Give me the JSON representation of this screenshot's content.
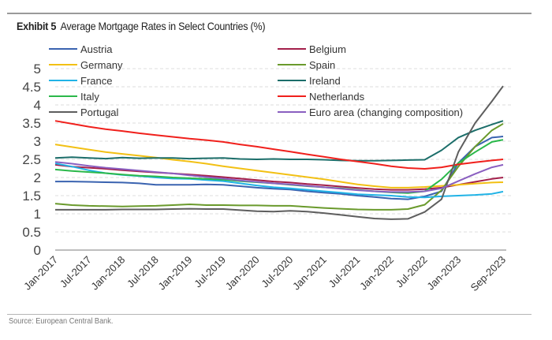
{
  "header": {
    "exhibit": "Exhibit 5",
    "title": "Average Mortgage Rates in Select Countries (%)"
  },
  "footer": {
    "source": "Source: European Central Bank."
  },
  "chart_data": {
    "type": "line",
    "title": "Average Mortgage Rates in Select Countries (%)",
    "xlabel": "",
    "ylabel": "",
    "ylim": [
      0,
      5
    ],
    "yticks": [
      "0",
      "0.5",
      "1",
      "1.5",
      "2",
      "2.5",
      "3",
      "3.5",
      "4",
      "4.5",
      "5"
    ],
    "ytick_values": [
      0,
      0.5,
      1,
      1.5,
      2,
      2.5,
      3,
      3.5,
      4,
      4.5,
      5
    ],
    "xtick_labels": [
      "Jan-2017",
      "Jul-2017",
      "Jan-2018",
      "Jul-2018",
      "Jan-2019",
      "Jul-2019",
      "Jan-2020",
      "Jul-2020",
      "Jan-2021",
      "Jul-2021",
      "Jan-2022",
      "Jul-2022",
      "Jan-2023",
      "Sep-2023"
    ],
    "xtick_months": [
      0,
      6,
      12,
      18,
      24,
      30,
      36,
      42,
      48,
      54,
      60,
      66,
      72,
      80
    ],
    "grid": "horizontal dashed",
    "legend_position": "top, two columns",
    "x_months": [
      0,
      3,
      6,
      9,
      12,
      15,
      18,
      21,
      24,
      27,
      30,
      33,
      36,
      39,
      42,
      45,
      48,
      51,
      54,
      57,
      60,
      63,
      66,
      69,
      72,
      75,
      78,
      80
    ],
    "x_start": "Jan-2017",
    "series": [
      {
        "name": "Austria",
        "color": "#3a63b0",
        "values": [
          1.89,
          1.89,
          1.88,
          1.87,
          1.86,
          1.84,
          1.8,
          1.8,
          1.8,
          1.81,
          1.8,
          1.76,
          1.72,
          1.69,
          1.67,
          1.62,
          1.58,
          1.55,
          1.5,
          1.46,
          1.42,
          1.4,
          1.48,
          1.62,
          2.4,
          2.85,
          3.1,
          3.13
        ]
      },
      {
        "name": "Belgium",
        "color": "#a31f4a",
        "values": [
          2.35,
          2.3,
          2.27,
          2.24,
          2.2,
          2.17,
          2.14,
          2.11,
          2.08,
          2.05,
          2.01,
          1.97,
          1.93,
          1.89,
          1.86,
          1.82,
          1.79,
          1.75,
          1.71,
          1.68,
          1.66,
          1.66,
          1.68,
          1.72,
          1.8,
          1.88,
          1.96,
          2.0
        ]
      },
      {
        "name": "Germany",
        "color": "#f2c014",
        "values": [
          2.91,
          2.84,
          2.77,
          2.7,
          2.65,
          2.6,
          2.55,
          2.49,
          2.44,
          2.38,
          2.31,
          2.25,
          2.19,
          2.13,
          2.07,
          2.01,
          1.95,
          1.88,
          1.81,
          1.76,
          1.72,
          1.72,
          1.74,
          1.77,
          1.8,
          1.83,
          1.86,
          1.87
        ]
      },
      {
        "name": "Spain",
        "color": "#6a9a2c",
        "values": [
          1.28,
          1.24,
          1.22,
          1.21,
          1.2,
          1.21,
          1.22,
          1.24,
          1.26,
          1.24,
          1.24,
          1.23,
          1.23,
          1.22,
          1.22,
          1.19,
          1.16,
          1.14,
          1.12,
          1.11,
          1.11,
          1.13,
          1.25,
          1.65,
          2.3,
          2.85,
          3.3,
          3.48
        ]
      },
      {
        "name": "France",
        "color": "#21b3e6",
        "values": [
          2.39,
          2.3,
          2.2,
          2.12,
          2.07,
          2.04,
          2.0,
          1.97,
          1.96,
          1.93,
          1.9,
          1.84,
          1.78,
          1.73,
          1.7,
          1.66,
          1.62,
          1.58,
          1.54,
          1.52,
          1.5,
          1.46,
          1.45,
          1.48,
          1.5,
          1.52,
          1.55,
          1.61
        ]
      },
      {
        "name": "Ireland",
        "color": "#1c6e6a",
        "values": [
          2.54,
          2.56,
          2.54,
          2.52,
          2.55,
          2.53,
          2.54,
          2.54,
          2.52,
          2.53,
          2.54,
          2.51,
          2.5,
          2.51,
          2.5,
          2.5,
          2.49,
          2.47,
          2.46,
          2.46,
          2.47,
          2.48,
          2.49,
          2.75,
          3.1,
          3.3,
          3.46,
          3.56
        ]
      },
      {
        "name": "Italy",
        "color": "#2bb84a",
        "values": [
          2.22,
          2.18,
          2.15,
          2.12,
          2.08,
          2.05,
          2.03,
          2.0,
          1.98,
          1.96,
          1.94,
          1.9,
          1.87,
          1.84,
          1.8,
          1.76,
          1.73,
          1.7,
          1.66,
          1.62,
          1.59,
          1.57,
          1.62,
          1.95,
          2.4,
          2.7,
          2.98,
          3.04
        ]
      },
      {
        "name": "Netherlands",
        "color": "#f0201c",
        "values": [
          3.56,
          3.48,
          3.4,
          3.33,
          3.28,
          3.22,
          3.17,
          3.12,
          3.07,
          3.03,
          2.98,
          2.91,
          2.85,
          2.78,
          2.71,
          2.64,
          2.57,
          2.5,
          2.44,
          2.38,
          2.31,
          2.26,
          2.24,
          2.28,
          2.36,
          2.42,
          2.47,
          2.5
        ]
      },
      {
        "name": "Portugal",
        "color": "#5e5e5e",
        "values": [
          1.11,
          1.11,
          1.11,
          1.11,
          1.12,
          1.12,
          1.12,
          1.13,
          1.14,
          1.13,
          1.13,
          1.1,
          1.07,
          1.06,
          1.08,
          1.06,
          1.02,
          0.97,
          0.92,
          0.87,
          0.85,
          0.86,
          1.05,
          1.4,
          2.7,
          3.5,
          4.1,
          4.52
        ]
      },
      {
        "name": "Euro area (changing composition)",
        "color": "#8a5fc0",
        "values": [
          2.43,
          2.38,
          2.32,
          2.27,
          2.23,
          2.19,
          2.15,
          2.11,
          2.06,
          2.01,
          1.97,
          1.92,
          1.88,
          1.84,
          1.81,
          1.77,
          1.73,
          1.69,
          1.65,
          1.62,
          1.6,
          1.6,
          1.62,
          1.7,
          1.9,
          2.1,
          2.28,
          2.35
        ]
      }
    ]
  }
}
